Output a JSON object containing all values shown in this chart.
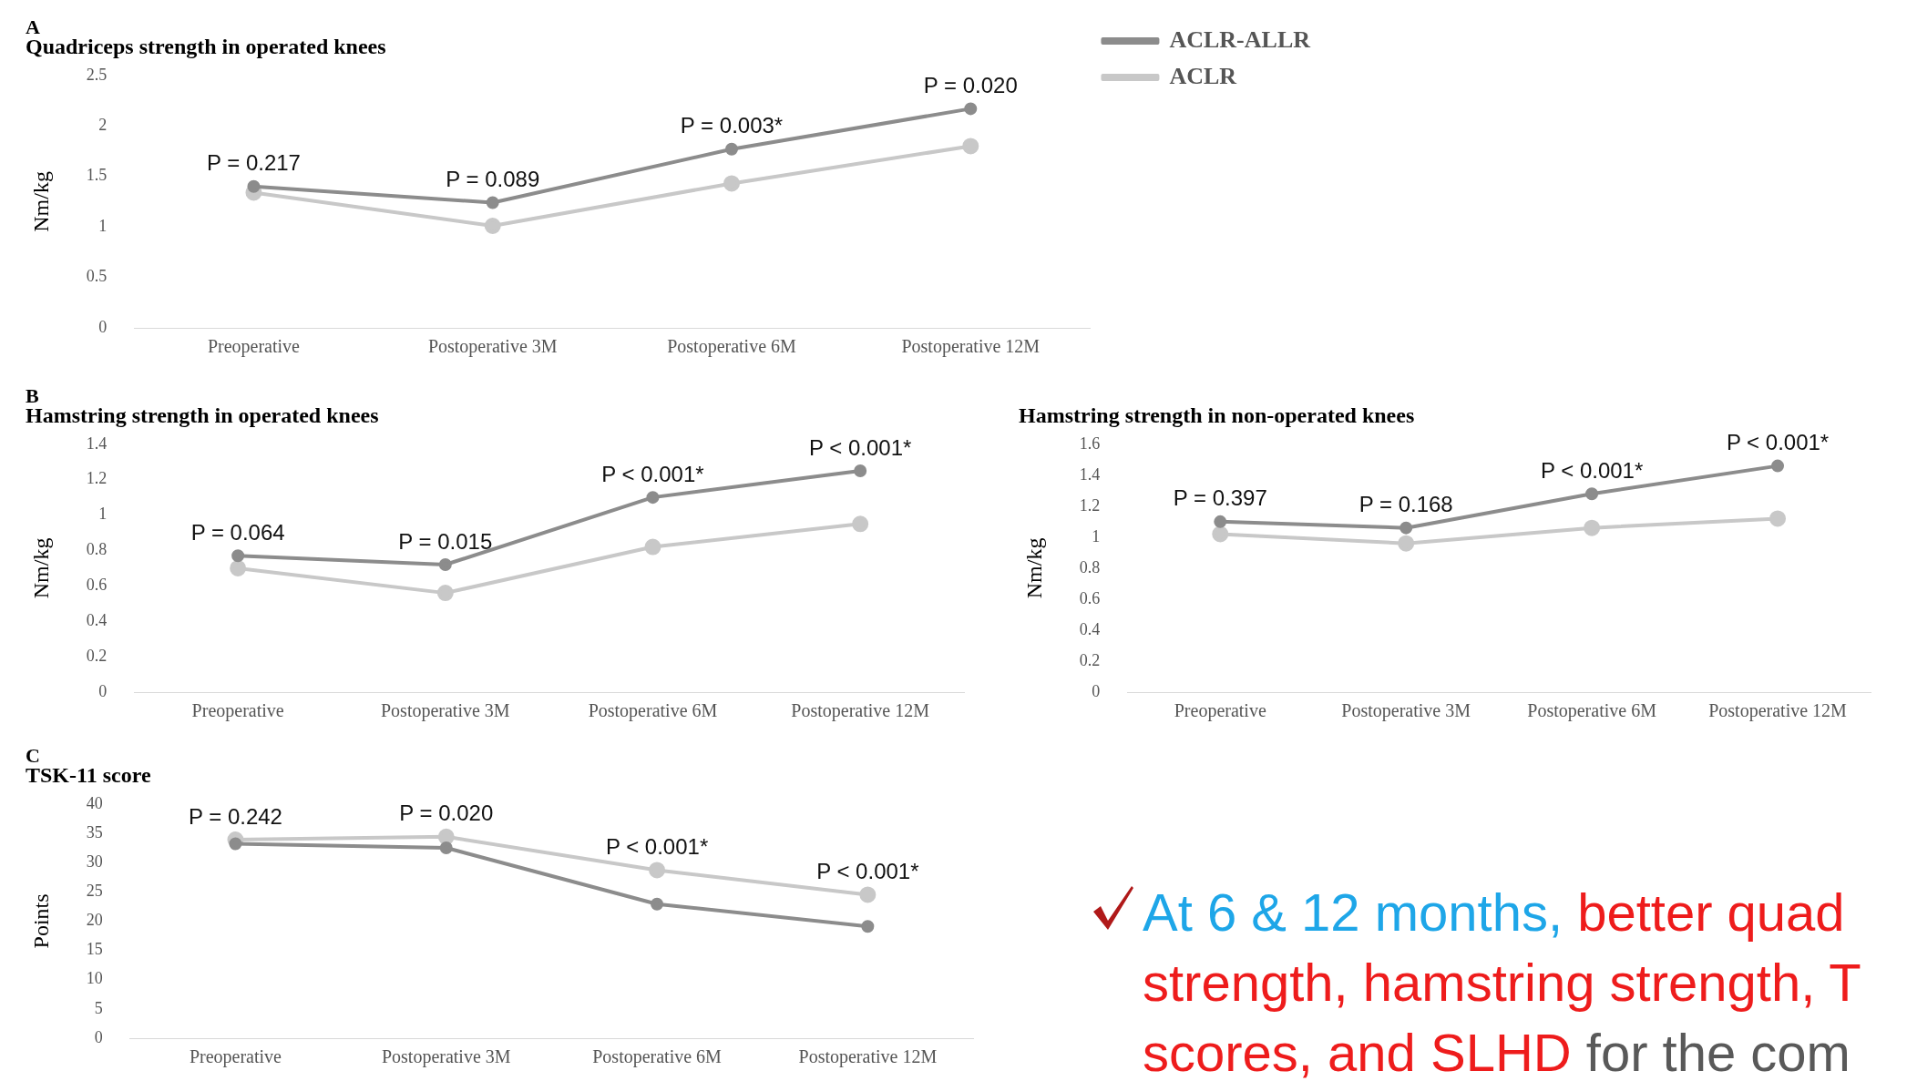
{
  "chart_data": [
    {
      "type": "line",
      "title": "Quadriceps strength in operated knees",
      "ylabel": "Nm/kg",
      "categories": [
        "Preoperative",
        "Postoperative 3M",
        "Postoperative 6M",
        "Postoperative 12M"
      ],
      "ylim": [
        0,
        2.5
      ],
      "yticks": [
        0,
        0.5,
        1,
        1.5,
        2,
        2.5
      ],
      "grid": false,
      "legend": "right",
      "marker": "circle",
      "series": [
        {
          "name": "ACLR-ALLR",
          "color": "#8c8c8c",
          "values": [
            1.4,
            1.24,
            1.77,
            2.17
          ]
        },
        {
          "name": "ACLR",
          "color": "#c8c8c8",
          "values": [
            1.34,
            1.01,
            1.43,
            1.8
          ]
        }
      ],
      "annotations": [
        "A",
        {
          "text": "P = 0.217",
          "x": "Preoperative",
          "y": 1.4
        },
        {
          "text": "P = 0.089",
          "x": "Postoperative 3M",
          "y": 1.24
        },
        {
          "text": "P = 0.003*",
          "x": "Postoperative 6M",
          "y": 1.77
        },
        {
          "text": "P = 0.020",
          "x": "Postoperative 12M",
          "y": 2.17
        }
      ]
    },
    {
      "type": "line",
      "title": "Hamstring strength in operated knees",
      "ylabel": "Nm/kg",
      "categories": [
        "Preoperative",
        "Postoperative 3M",
        "Postoperative 6M",
        "Postoperative 12M"
      ],
      "ylim": [
        0,
        1.4
      ],
      "yticks": [
        0,
        0.2,
        0.4,
        0.6,
        0.8,
        1,
        1.2,
        1.4
      ],
      "grid": false,
      "marker": "circle",
      "series": [
        {
          "color": "#8c8c8c",
          "values": [
            0.77,
            0.72,
            1.1,
            1.25
          ]
        },
        {
          "color": "#c8c8c8",
          "values": [
            0.7,
            0.56,
            0.82,
            0.95
          ]
        }
      ],
      "annotations": [
        "B",
        {
          "text": "P = 0.064",
          "x": "Preoperative",
          "y": 0.77
        },
        {
          "text": "P = 0.015",
          "x": "Postoperative 3M",
          "y": 0.72
        },
        {
          "text": "P < 0.001*",
          "x": "Postoperative 6M",
          "y": 1.1
        },
        {
          "text": "P < 0.001*",
          "x": "Postoperative 12M",
          "y": 1.25
        }
      ]
    },
    {
      "type": "line",
      "title": "Hamstring strength in non-operated knees",
      "ylabel": "Nm/kg",
      "categories": [
        "Preoperative",
        "Postoperative 3M",
        "Postoperative 6M",
        "Postoperative 12M"
      ],
      "ylim": [
        0,
        1.6
      ],
      "yticks": [
        0,
        0.2,
        0.4,
        0.6,
        0.8,
        1,
        1.2,
        1.4,
        1.6
      ],
      "grid": false,
      "marker": "circle",
      "series": [
        {
          "color": "#8c8c8c",
          "values": [
            1.1,
            1.06,
            1.28,
            1.46
          ]
        },
        {
          "color": "#c8c8c8",
          "values": [
            1.02,
            0.96,
            1.06,
            1.12
          ]
        }
      ],
      "annotations": [
        {
          "text": "P = 0.397",
          "x": "Preoperative",
          "y": 1.1
        },
        {
          "text": "P = 0.168",
          "x": "Postoperative 3M",
          "y": 1.06
        },
        {
          "text": "P < 0.001*",
          "x": "Postoperative 6M",
          "y": 1.28
        },
        {
          "text": "P < 0.001*",
          "x": "Postoperative 12M",
          "y": 1.46
        }
      ]
    },
    {
      "type": "line",
      "title": "TSK-11 score",
      "ylabel": "Points",
      "categories": [
        "Preoperative",
        "Postoperative 3M",
        "Postoperative 6M",
        "Postoperative 12M"
      ],
      "ylim": [
        0,
        40
      ],
      "yticks": [
        0,
        5,
        10,
        15,
        20,
        25,
        30,
        35,
        40
      ],
      "grid": false,
      "marker": "circle",
      "series": [
        {
          "color": "#8c8c8c",
          "values": [
            33.2,
            32.5,
            22.9,
            19.1
          ]
        },
        {
          "color": "#c8c8c8",
          "values": [
            33.9,
            34.4,
            28.7,
            24.5
          ]
        }
      ],
      "annotations": [
        "C",
        {
          "text": "P = 0.242",
          "x": "Preoperative",
          "y": 33.9
        },
        {
          "text": "P = 0.020",
          "x": "Postoperative 3M",
          "y": 34.4
        },
        {
          "text": "P < 0.001*",
          "x": "Postoperative 6M",
          "y": 28.7
        },
        {
          "text": "P < 0.001*",
          "x": "Postoperative 12M",
          "y": 24.5
        }
      ]
    },
    {
      "type": "other",
      "annotations": [
        "At 6 & 12 months,",
        "better quad strength, hamstring strength, T scores, and SLHD",
        "for the com"
      ],
      "colors": [
        "#1ea6e8",
        "#ee1c1c",
        "#595959"
      ]
    }
  ]
}
